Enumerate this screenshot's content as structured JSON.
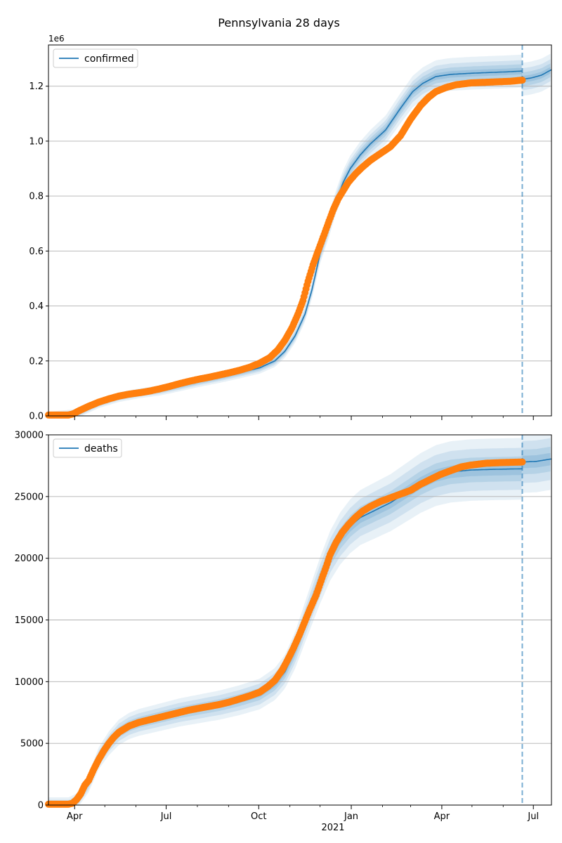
{
  "figure_title": "Pennsylvania 28 days",
  "colors": {
    "model": "#1f77b4",
    "observed": "#ff7f0e",
    "grid": "#b0b0b0",
    "vline": "#1f77b4"
  },
  "chart_data": [
    {
      "type": "line",
      "name": "confirmed",
      "legend": "confirmed",
      "legend_loc": "upper-left",
      "offset_label": "1e6",
      "ylim": [
        0,
        1.35
      ],
      "yticks": [
        0.0,
        0.2,
        0.4,
        0.6,
        0.8,
        1.0,
        1.2
      ],
      "ytick_labels": [
        "0.0",
        "0.2",
        "0.4",
        "0.6",
        "0.8",
        "1.0",
        "1.2"
      ],
      "grid": "y",
      "xlim": [
        0,
        500
      ],
      "forecast_start_day": 471,
      "model_curve": [
        [
          0,
          0.0
        ],
        [
          30,
          0.01
        ],
        [
          50,
          0.045
        ],
        [
          70,
          0.068
        ],
        [
          90,
          0.082
        ],
        [
          110,
          0.092
        ],
        [
          130,
          0.108
        ],
        [
          150,
          0.125
        ],
        [
          170,
          0.14
        ],
        [
          190,
          0.157
        ],
        [
          210,
          0.175
        ],
        [
          225,
          0.2
        ],
        [
          235,
          0.235
        ],
        [
          245,
          0.29
        ],
        [
          255,
          0.37
        ],
        [
          262,
          0.46
        ],
        [
          270,
          0.59
        ],
        [
          278,
          0.68
        ],
        [
          285,
          0.77
        ],
        [
          293,
          0.85
        ],
        [
          300,
          0.9
        ],
        [
          310,
          0.95
        ],
        [
          320,
          0.99
        ],
        [
          335,
          1.04
        ],
        [
          350,
          1.12
        ],
        [
          362,
          1.18
        ],
        [
          372,
          1.21
        ],
        [
          385,
          1.235
        ],
        [
          400,
          1.243
        ],
        [
          420,
          1.247
        ],
        [
          440,
          1.25
        ],
        [
          455,
          1.252
        ],
        [
          471,
          1.255
        ]
      ],
      "forecast_curve": [
        [
          471,
          1.225
        ],
        [
          480,
          1.23
        ],
        [
          490,
          1.24
        ],
        [
          500,
          1.26
        ]
      ],
      "observed": [
        [
          0,
          0.003
        ],
        [
          20,
          0.003
        ],
        [
          25,
          0.008
        ],
        [
          30,
          0.018
        ],
        [
          40,
          0.035
        ],
        [
          50,
          0.05
        ],
        [
          60,
          0.062
        ],
        [
          70,
          0.072
        ],
        [
          80,
          0.079
        ],
        [
          90,
          0.084
        ],
        [
          100,
          0.09
        ],
        [
          110,
          0.098
        ],
        [
          120,
          0.107
        ],
        [
          130,
          0.117
        ],
        [
          140,
          0.126
        ],
        [
          150,
          0.134
        ],
        [
          160,
          0.141
        ],
        [
          170,
          0.149
        ],
        [
          180,
          0.157
        ],
        [
          190,
          0.166
        ],
        [
          200,
          0.177
        ],
        [
          210,
          0.192
        ],
        [
          220,
          0.212
        ],
        [
          228,
          0.24
        ],
        [
          235,
          0.275
        ],
        [
          242,
          0.32
        ],
        [
          248,
          0.37
        ],
        [
          253,
          0.42
        ],
        [
          258,
          0.49
        ],
        [
          263,
          0.55
        ],
        [
          268,
          0.6
        ],
        [
          273,
          0.65
        ],
        [
          278,
          0.7
        ],
        [
          283,
          0.75
        ],
        [
          288,
          0.79
        ],
        [
          293,
          0.82
        ],
        [
          298,
          0.85
        ],
        [
          305,
          0.88
        ],
        [
          312,
          0.905
        ],
        [
          320,
          0.93
        ],
        [
          330,
          0.955
        ],
        [
          340,
          0.98
        ],
        [
          350,
          1.02
        ],
        [
          360,
          1.08
        ],
        [
          370,
          1.13
        ],
        [
          378,
          1.16
        ],
        [
          385,
          1.18
        ],
        [
          395,
          1.195
        ],
        [
          405,
          1.205
        ],
        [
          420,
          1.212
        ],
        [
          440,
          1.215
        ],
        [
          460,
          1.218
        ],
        [
          471,
          1.222
        ]
      ],
      "band_halfwidths": [
        0.012,
        0.025,
        0.04,
        0.06
      ]
    },
    {
      "type": "line",
      "name": "deaths",
      "legend": "deaths",
      "legend_loc": "upper-left",
      "ylim": [
        0,
        30000
      ],
      "yticks": [
        0,
        5000,
        10000,
        15000,
        20000,
        25000,
        30000
      ],
      "ytick_labels": [
        "0",
        "5000",
        "10000",
        "15000",
        "20000",
        "25000",
        "30000"
      ],
      "grid": "y",
      "xlim": [
        0,
        500
      ],
      "forecast_start_day": 471,
      "model_curve": [
        [
          0,
          0
        ],
        [
          20,
          0
        ],
        [
          28,
          300
        ],
        [
          40,
          1800
        ],
        [
          50,
          3800
        ],
        [
          60,
          5000
        ],
        [
          70,
          5900
        ],
        [
          80,
          6400
        ],
        [
          90,
          6700
        ],
        [
          110,
          7100
        ],
        [
          130,
          7500
        ],
        [
          150,
          7800
        ],
        [
          170,
          8100
        ],
        [
          190,
          8500
        ],
        [
          210,
          9000
        ],
        [
          225,
          9800
        ],
        [
          235,
          10800
        ],
        [
          245,
          12500
        ],
        [
          255,
          14800
        ],
        [
          262,
          16400
        ],
        [
          270,
          18200
        ],
        [
          280,
          20200
        ],
        [
          290,
          21600
        ],
        [
          300,
          22600
        ],
        [
          310,
          23300
        ],
        [
          325,
          23900
        ],
        [
          340,
          24500
        ],
        [
          355,
          25300
        ],
        [
          370,
          26100
        ],
        [
          385,
          26700
        ],
        [
          400,
          27000
        ],
        [
          420,
          27150
        ],
        [
          440,
          27200
        ],
        [
          471,
          27250
        ]
      ],
      "forecast_curve": [
        [
          471,
          27800
        ],
        [
          485,
          27850
        ],
        [
          500,
          28050
        ]
      ],
      "observed": [
        [
          0,
          70
        ],
        [
          20,
          70
        ],
        [
          24,
          150
        ],
        [
          28,
          450
        ],
        [
          32,
          900
        ],
        [
          36,
          1600
        ],
        [
          40,
          2000
        ],
        [
          45,
          2900
        ],
        [
          50,
          3700
        ],
        [
          55,
          4400
        ],
        [
          60,
          5000
        ],
        [
          65,
          5500
        ],
        [
          70,
          5900
        ],
        [
          80,
          6400
        ],
        [
          90,
          6700
        ],
        [
          100,
          6900
        ],
        [
          110,
          7100
        ],
        [
          120,
          7300
        ],
        [
          130,
          7500
        ],
        [
          140,
          7700
        ],
        [
          150,
          7850
        ],
        [
          160,
          8000
        ],
        [
          170,
          8150
        ],
        [
          180,
          8350
        ],
        [
          190,
          8600
        ],
        [
          200,
          8850
        ],
        [
          210,
          9150
        ],
        [
          218,
          9600
        ],
        [
          225,
          10100
        ],
        [
          232,
          10900
        ],
        [
          238,
          11800
        ],
        [
          244,
          12800
        ],
        [
          250,
          13900
        ],
        [
          255,
          14900
        ],
        [
          260,
          15900
        ],
        [
          266,
          17000
        ],
        [
          272,
          18400
        ],
        [
          276,
          19300
        ],
        [
          280,
          20300
        ],
        [
          286,
          21300
        ],
        [
          292,
          22100
        ],
        [
          298,
          22700
        ],
        [
          305,
          23300
        ],
        [
          312,
          23800
        ],
        [
          320,
          24200
        ],
        [
          330,
          24600
        ],
        [
          340,
          24900
        ],
        [
          350,
          25200
        ],
        [
          360,
          25500
        ],
        [
          370,
          26000
        ],
        [
          380,
          26400
        ],
        [
          390,
          26800
        ],
        [
          400,
          27100
        ],
        [
          410,
          27400
        ],
        [
          420,
          27550
        ],
        [
          435,
          27700
        ],
        [
          450,
          27750
        ],
        [
          471,
          27800
        ]
      ],
      "band_halfwidths": [
        500,
        1000,
        1700,
        2500
      ]
    }
  ],
  "x_axis": {
    "tick_labels": [
      "Apr",
      "Jul",
      "Oct",
      "Jan",
      "Apr",
      "Jul"
    ],
    "tick_days": [
      26,
      117,
      209,
      301,
      391,
      482
    ],
    "minor_tick_days": [
      56,
      87,
      148,
      179,
      240,
      270,
      332,
      360,
      421,
      452
    ],
    "year_label": "2021"
  }
}
